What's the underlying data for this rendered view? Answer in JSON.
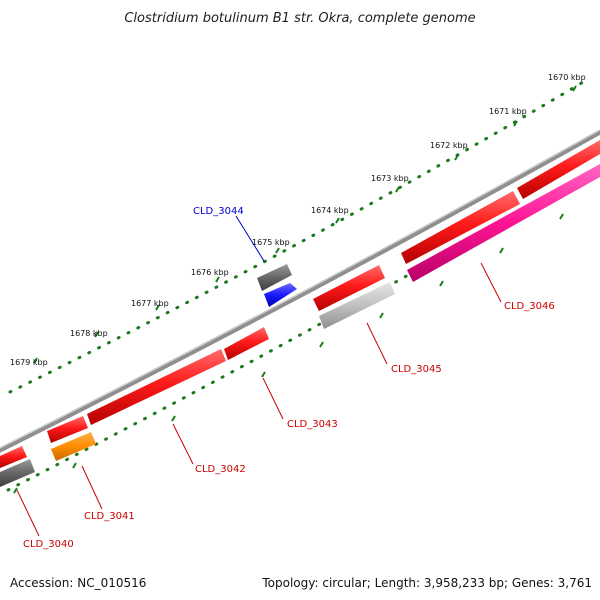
{
  "title": "Clostridium botulinum B1 str. Okra, complete genome",
  "footer": {
    "accession": "Accession: NC_010516",
    "stats": "Topology: circular; Length: 3,958,233 bp; Genes: 3,761"
  },
  "kbp_ticks": [
    {
      "label": "1670 kbp",
      "value": 1670
    },
    {
      "label": "1671 kbp",
      "value": 1671
    },
    {
      "label": "1672 kbp",
      "value": 1672
    },
    {
      "label": "1673 kbp",
      "value": 1673
    },
    {
      "label": "1674 kbp",
      "value": 1674
    },
    {
      "label": "1675 kbp",
      "value": 1675
    },
    {
      "label": "1676 kbp",
      "value": 1676
    },
    {
      "label": "1677 kbp",
      "value": 1677
    },
    {
      "label": "1678 kbp",
      "value": 1678
    },
    {
      "label": "1679 kbp",
      "value": 1679
    }
  ],
  "genes": [
    {
      "label": "CLD_3040",
      "color": "#ff1a1a",
      "strand": "outer",
      "type": "red"
    },
    {
      "label": "CLD_3041",
      "color": "#ff8c00",
      "strand": "inner",
      "type": "orange"
    },
    {
      "label": "CLD_3042",
      "color": "#ff1a1a",
      "strand": "outer",
      "type": "red"
    },
    {
      "label": "CLD_3043",
      "color": "#ff1a1a",
      "strand": "outer",
      "type": "red"
    },
    {
      "label": "CLD_3044",
      "color": "#1a1aff",
      "strand": "inner",
      "type": "blue"
    },
    {
      "label": "CLD_3045",
      "color": "#c0c0c0",
      "strand": "inner",
      "type": "lightgray"
    },
    {
      "label": "CLD_3046",
      "color": "#ff1493",
      "strand": "inner",
      "type": "magenta"
    }
  ],
  "colors": {
    "backbone": "#888888",
    "tick_green": "#1b7a1b",
    "label_red": "#cc0000",
    "label_blue": "#0000cc",
    "gene_red": "#ff1a1a",
    "gene_orange": "#ff8c00",
    "gene_blue": "#1a1aff",
    "gene_gray": "#666666",
    "gene_lightgray": "#c0c0c0",
    "gene_magenta": "#ff1493"
  }
}
